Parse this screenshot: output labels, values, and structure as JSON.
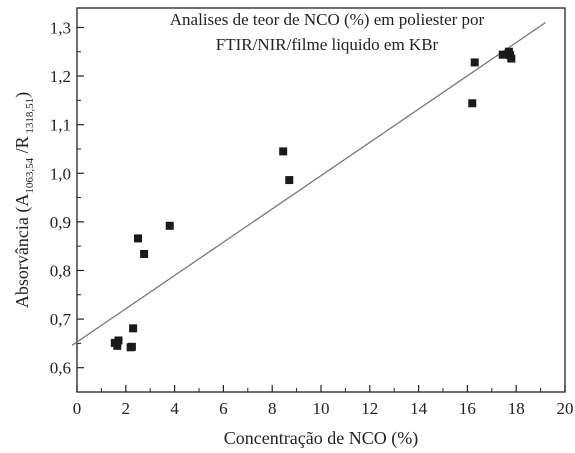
{
  "chart_data": {
    "type": "scatter",
    "title_lines": [
      "Analises de teor de NCO (%) em poliester por",
      "FTIR/NIR/filme liquido em KBr"
    ],
    "xlabel": "Concentração de NCO (%)",
    "ylabel": {
      "prefix": "Absorvância (A",
      "sub1": "1063,54",
      "mid": " /R",
      "sub2": " 1318,51",
      "suffix": ")"
    },
    "xlim": [
      0,
      20
    ],
    "ylim": [
      0.55,
      1.34
    ],
    "x_ticks": [
      0,
      2,
      4,
      6,
      8,
      10,
      12,
      14,
      16,
      18,
      20
    ],
    "y_ticks": [
      0.6,
      0.7,
      0.8,
      0.9,
      1.0,
      1.1,
      1.2,
      1.3
    ],
    "x_tick_labels": [
      "0",
      "2",
      "4",
      "6",
      "8",
      "10",
      "12",
      "14",
      "16",
      "18",
      "20"
    ],
    "y_tick_labels": [
      "0,6",
      "0,7",
      "0,8",
      "0,9",
      "1,0",
      "1,1",
      "1,2",
      "1,3"
    ],
    "grid": false,
    "marker_color": "#1a1a1a",
    "line_color": "#7a7a7a",
    "points": [
      {
        "x": 1.55,
        "y": 0.651
      },
      {
        "x": 1.65,
        "y": 0.645
      },
      {
        "x": 1.7,
        "y": 0.656
      },
      {
        "x": 2.2,
        "y": 0.642
      },
      {
        "x": 2.25,
        "y": 0.643
      },
      {
        "x": 2.3,
        "y": 0.681
      },
      {
        "x": 2.5,
        "y": 0.866
      },
      {
        "x": 2.75,
        "y": 0.834
      },
      {
        "x": 3.8,
        "y": 0.892
      },
      {
        "x": 8.45,
        "y": 1.045
      },
      {
        "x": 8.7,
        "y": 0.986
      },
      {
        "x": 16.2,
        "y": 1.144
      },
      {
        "x": 16.3,
        "y": 1.228
      },
      {
        "x": 17.45,
        "y": 1.244
      },
      {
        "x": 17.7,
        "y": 1.25
      },
      {
        "x": 17.75,
        "y": 1.243
      },
      {
        "x": 17.8,
        "y": 1.236
      }
    ],
    "fit_line": {
      "x": [
        -0.2,
        19.2
      ],
      "y": [
        0.646,
        1.31
      ]
    }
  }
}
